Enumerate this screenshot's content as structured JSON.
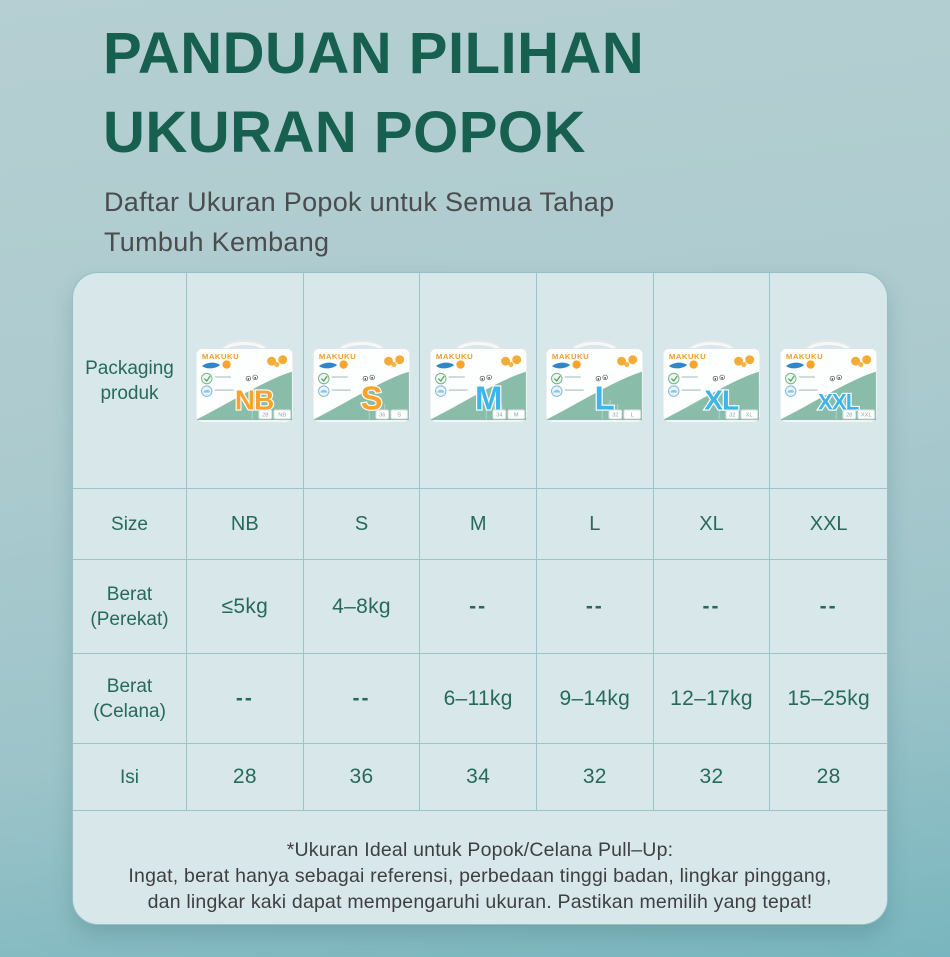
{
  "header": {
    "title_line1": "PANDUAN PILIHAN",
    "title_line2": "UKURAN POPOK",
    "subtitle": "Daftar Ukuran Popok untuk Semua Tahap\nTumbuh Kembang"
  },
  "table": {
    "brand": "MAKUKU",
    "row_labels": {
      "packaging": "Packaging\nproduk",
      "size": "Size",
      "weight_tape": "Berat\n(Perekat)",
      "weight_pants": "Berat\n(Celana)",
      "count": "Isi"
    },
    "columns": [
      {
        "size": "NB",
        "letter_color": "#f9a32b",
        "weight_tape": "≤5kg",
        "weight_pants": "--",
        "count": "28"
      },
      {
        "size": "S",
        "letter_color": "#f9a32b",
        "weight_tape": "4–8kg",
        "weight_pants": "--",
        "count": "36"
      },
      {
        "size": "M",
        "letter_color": "#3db5e8",
        "weight_tape": "--",
        "weight_pants": "6–11kg",
        "count": "34"
      },
      {
        "size": "L",
        "letter_color": "#3db5e8",
        "weight_tape": "--",
        "weight_pants": "9–14kg",
        "count": "32"
      },
      {
        "size": "XL",
        "letter_color": "#3db5e8",
        "weight_tape": "--",
        "weight_pants": "12–17kg",
        "count": "32"
      },
      {
        "size": "XXL",
        "letter_color": "#3db5e8",
        "weight_tape": "--",
        "weight_pants": "15–25kg",
        "count": "28"
      }
    ],
    "footnote_line1": "*Ukuran Ideal untuk Popok/Celana Pull–Up:",
    "footnote_line2": "Ingat, berat hanya sebagai referensi, perbedaan tinggi badan, lingkar pinggang,",
    "footnote_line3": "dan lingkar kaki dapat mempengaruhi ukuran. Pastikan memilih yang tepat!"
  },
  "colors": {
    "title_green": "#176050",
    "table_text_green": "#266a5c",
    "subtitle_gray": "#4b4c4e",
    "dash_gray": "#5d7478",
    "page_bg_top": "#b5cfd2",
    "page_bg_bottom": "#79b5be",
    "card_bg": "#d8e7e9",
    "grid_line": "#9cc4c8",
    "brand_orange": "#f09b2d",
    "package_sage": "#8abcaa",
    "letter_orange": "#f9a32b",
    "letter_blue": "#3db5e8"
  }
}
